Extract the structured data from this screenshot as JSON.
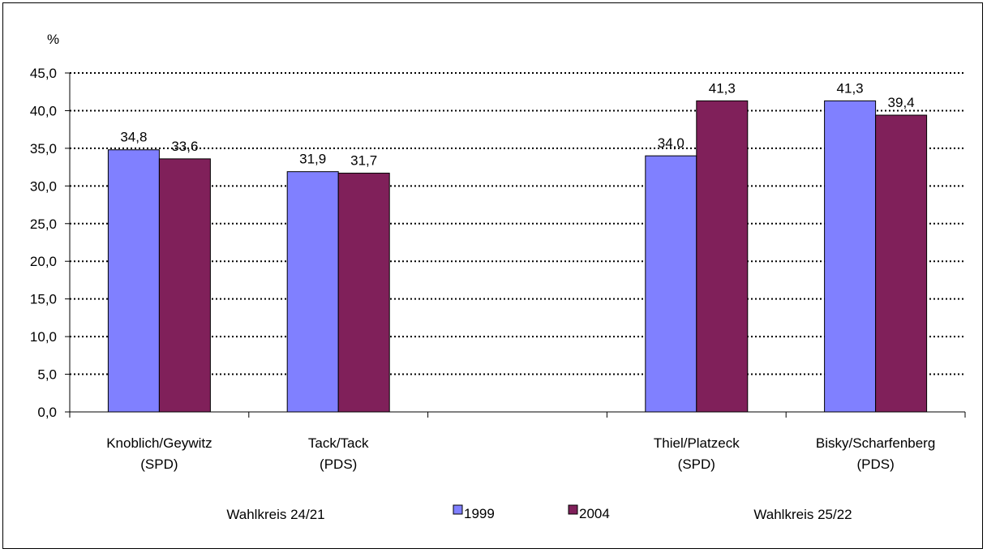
{
  "chart_data": {
    "type": "bar",
    "ylabel": "%",
    "ylim": [
      0,
      45
    ],
    "yticks": [
      "0,0",
      "5,0",
      "10,0",
      "15,0",
      "20,0",
      "25,0",
      "30,0",
      "35,0",
      "40,0",
      "45,0"
    ],
    "categories": [
      {
        "line1": "Knoblich/Geywitz",
        "line2": "(SPD)"
      },
      {
        "line1": "Tack/Tack",
        "line2": "(PDS)"
      },
      {
        "line1": "",
        "line2": ""
      },
      {
        "line1": "Thiel/Platzeck",
        "line2": "(SPD)"
      },
      {
        "line1": "Bisky/Scharfenberg",
        "line2": "(PDS)"
      }
    ],
    "series": [
      {
        "name": "1999",
        "color": "#8080ff",
        "values": [
          34.8,
          31.9,
          null,
          34.0,
          41.3
        ],
        "labels": [
          "34,8",
          "31,9",
          "",
          "34,0",
          "41,3"
        ]
      },
      {
        "name": "2004",
        "color": "#80205a",
        "values": [
          33.6,
          31.7,
          null,
          41.3,
          39.4
        ],
        "labels": [
          "33,6",
          "31,7",
          "",
          "41,3",
          "39,4"
        ]
      }
    ],
    "grid": true,
    "gridstyle": "dotted",
    "legend_position": "bottom-center",
    "group_labels": [
      "Wahlkreis 24/21",
      "Wahlkreis 25/22"
    ]
  }
}
